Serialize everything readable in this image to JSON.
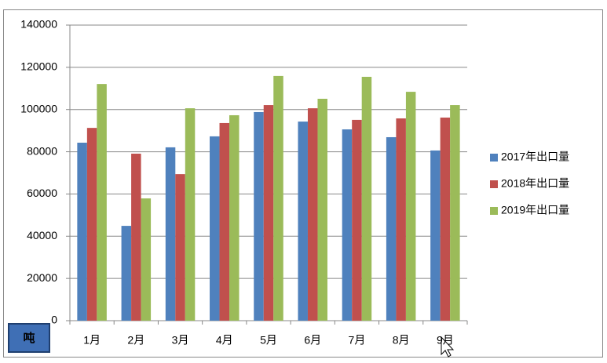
{
  "chart_data": {
    "type": "bar",
    "categories": [
      "1月",
      "2月",
      "3月",
      "4月",
      "5月",
      "6月",
      "7月",
      "8月",
      "9月"
    ],
    "series": [
      {
        "name": "2017年出口量",
        "color": "#4f81bd",
        "values": [
          84300,
          44900,
          82100,
          87300,
          98800,
          94300,
          90600,
          86900,
          80600
        ]
      },
      {
        "name": "2018年出口量",
        "color": "#c0504d",
        "values": [
          91300,
          79100,
          69400,
          93600,
          102100,
          100600,
          95100,
          95800,
          96200
        ]
      },
      {
        "name": "2019年出口量",
        "color": "#9bbb59",
        "values": [
          112100,
          57900,
          100600,
          97300,
          115900,
          105100,
          115500,
          108400,
          102100
        ]
      }
    ],
    "ylim": [
      0,
      140000
    ],
    "yticks": [
      0,
      20000,
      40000,
      60000,
      80000,
      100000,
      120000,
      140000
    ],
    "grid": true,
    "legend": "right",
    "unit_label": "吨"
  }
}
